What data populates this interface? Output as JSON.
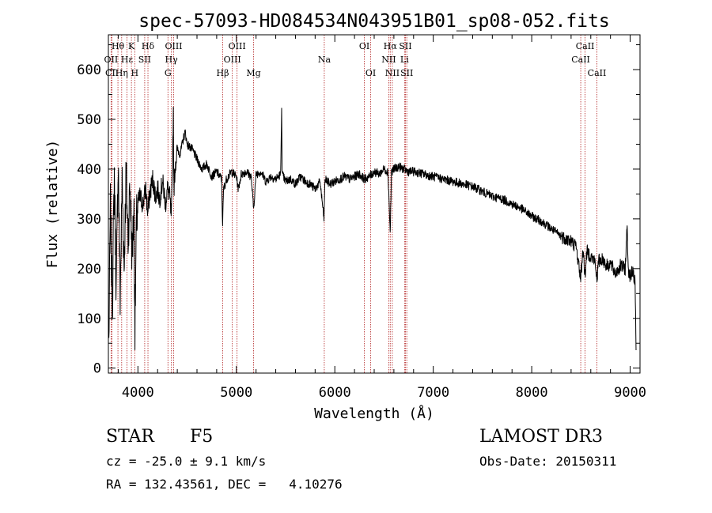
{
  "chart_data": {
    "type": "line",
    "title": "spec-57093-HD084534N043951B01_sp08-052.fits",
    "xlabel": "Wavelength (Å)",
    "ylabel": "Flux (relative)",
    "xlim": [
      3700,
      9100
    ],
    "ylim": [
      -10,
      670
    ],
    "xticks": [
      4000,
      5000,
      6000,
      7000,
      8000,
      9000
    ],
    "yticks": [
      0,
      100,
      200,
      300,
      400,
      500,
      600
    ],
    "grid": false,
    "line_color": "#000000",
    "marker_color": "#b22222",
    "anchors": [
      [
        3705,
        50
      ],
      [
        3720,
        330
      ],
      [
        3740,
        120
      ],
      [
        3760,
        390
      ],
      [
        3780,
        160
      ],
      [
        3800,
        420
      ],
      [
        3820,
        140
      ],
      [
        3840,
        380
      ],
      [
        3860,
        200
      ],
      [
        3880,
        400
      ],
      [
        3900,
        260
      ],
      [
        3920,
        370
      ],
      [
        3940,
        230
      ],
      [
        3960,
        310
      ],
      [
        3970,
        80
      ],
      [
        3985,
        290
      ],
      [
        4000,
        330
      ],
      [
        4020,
        345
      ],
      [
        4050,
        330
      ],
      [
        4080,
        360
      ],
      [
        4100,
        310
      ],
      [
        4120,
        350
      ],
      [
        4150,
        380
      ],
      [
        4180,
        345
      ],
      [
        4200,
        360
      ],
      [
        4220,
        340
      ],
      [
        4250,
        375
      ],
      [
        4280,
        330
      ],
      [
        4300,
        360
      ],
      [
        4320,
        350
      ],
      [
        4340,
        300
      ],
      [
        4350,
        390
      ],
      [
        4360,
        520
      ],
      [
        4365,
        360
      ],
      [
        4380,
        410
      ],
      [
        4400,
        440
      ],
      [
        4430,
        430
      ],
      [
        4460,
        460
      ],
      [
        4480,
        475
      ],
      [
        4500,
        450
      ],
      [
        4550,
        440
      ],
      [
        4600,
        420
      ],
      [
        4650,
        400
      ],
      [
        4700,
        410
      ],
      [
        4750,
        385
      ],
      [
        4800,
        395
      ],
      [
        4850,
        380
      ],
      [
        4860,
        290
      ],
      [
        4870,
        360
      ],
      [
        4900,
        380
      ],
      [
        4950,
        395
      ],
      [
        5000,
        385
      ],
      [
        5020,
        360
      ],
      [
        5050,
        390
      ],
      [
        5100,
        395
      ],
      [
        5150,
        385
      ],
      [
        5175,
        320
      ],
      [
        5200,
        390
      ],
      [
        5250,
        395
      ],
      [
        5300,
        375
      ],
      [
        5350,
        385
      ],
      [
        5400,
        380
      ],
      [
        5450,
        390
      ],
      [
        5460,
        530
      ],
      [
        5465,
        390
      ],
      [
        5500,
        375
      ],
      [
        5550,
        380
      ],
      [
        5600,
        370
      ],
      [
        5650,
        385
      ],
      [
        5700,
        375
      ],
      [
        5750,
        370
      ],
      [
        5800,
        360
      ],
      [
        5850,
        375
      ],
      [
        5890,
        300
      ],
      [
        5900,
        380
      ],
      [
        5950,
        370
      ],
      [
        6000,
        375
      ],
      [
        6050,
        380
      ],
      [
        6100,
        385
      ],
      [
        6150,
        380
      ],
      [
        6200,
        385
      ],
      [
        6250,
        390
      ],
      [
        6300,
        380
      ],
      [
        6350,
        385
      ],
      [
        6400,
        395
      ],
      [
        6450,
        390
      ],
      [
        6500,
        400
      ],
      [
        6540,
        395
      ],
      [
        6563,
        270
      ],
      [
        6575,
        395
      ],
      [
        6600,
        400
      ],
      [
        6650,
        405
      ],
      [
        6700,
        400
      ],
      [
        6750,
        395
      ],
      [
        6800,
        395
      ],
      [
        6900,
        390
      ],
      [
        7000,
        385
      ],
      [
        7100,
        380
      ],
      [
        7200,
        375
      ],
      [
        7300,
        370
      ],
      [
        7400,
        365
      ],
      [
        7500,
        355
      ],
      [
        7600,
        345
      ],
      [
        7700,
        340
      ],
      [
        7800,
        330
      ],
      [
        7900,
        320
      ],
      [
        8000,
        305
      ],
      [
        8100,
        295
      ],
      [
        8200,
        280
      ],
      [
        8300,
        265
      ],
      [
        8400,
        255
      ],
      [
        8450,
        245
      ],
      [
        8498,
        180
      ],
      [
        8520,
        240
      ],
      [
        8542,
        185
      ],
      [
        8560,
        235
      ],
      [
        8600,
        225
      ],
      [
        8640,
        215
      ],
      [
        8662,
        180
      ],
      [
        8680,
        215
      ],
      [
        8720,
        220
      ],
      [
        8760,
        205
      ],
      [
        8800,
        210
      ],
      [
        8850,
        190
      ],
      [
        8900,
        205
      ],
      [
        8950,
        200
      ],
      [
        8970,
        290
      ],
      [
        8980,
        200
      ],
      [
        9000,
        185
      ],
      [
        9030,
        195
      ],
      [
        9050,
        170
      ],
      [
        9060,
        35
      ]
    ],
    "line_markers": [
      {
        "name": "Hθ",
        "wavelength": 3797,
        "label_row": 0
      },
      {
        "name": "OII",
        "wavelength": 3727,
        "label_row": 1
      },
      {
        "name": "CII",
        "wavelength": 3737,
        "label_row": 2
      },
      {
        "name": "K",
        "wavelength": 3934,
        "label_row": 0
      },
      {
        "name": "Hε",
        "wavelength": 3889,
        "label_row": 1
      },
      {
        "name": "Hη",
        "wavelength": 3835,
        "label_row": 2
      },
      {
        "name": "H",
        "wavelength": 3968,
        "label_row": 2
      },
      {
        "name": "SII",
        "wavelength": 4069,
        "label_row": 1
      },
      {
        "name": "Hδ",
        "wavelength": 4102,
        "label_row": 0
      },
      {
        "name": "OIII",
        "wavelength": 4363,
        "label_row": 0
      },
      {
        "name": "Hγ",
        "wavelength": 4340,
        "label_row": 1
      },
      {
        "name": "G",
        "wavelength": 4305,
        "label_row": 2
      },
      {
        "name": "Hβ",
        "wavelength": 4861,
        "label_row": 2
      },
      {
        "name": "OIII",
        "wavelength": 5007,
        "label_row": 0
      },
      {
        "name": "OIII",
        "wavelength": 4959,
        "label_row": 1
      },
      {
        "name": "Mg",
        "wavelength": 5175,
        "label_row": 2
      },
      {
        "name": "Na",
        "wavelength": 5893,
        "label_row": 1
      },
      {
        "name": "OI",
        "wavelength": 6300,
        "label_row": 0
      },
      {
        "name": "OI",
        "wavelength": 6364,
        "label_row": 2
      },
      {
        "name": "Hα",
        "wavelength": 6563,
        "label_row": 0
      },
      {
        "name": "SII",
        "wavelength": 6717,
        "label_row": 0
      },
      {
        "name": "NII",
        "wavelength": 6548,
        "label_row": 1
      },
      {
        "name": "Li",
        "wavelength": 6708,
        "label_row": 1
      },
      {
        "name": "NII",
        "wavelength": 6584,
        "label_row": 2
      },
      {
        "name": "SII",
        "wavelength": 6731,
        "label_row": 2
      },
      {
        "name": "CaII",
        "wavelength": 8542,
        "label_row": 0
      },
      {
        "name": "CaII",
        "wavelength": 8498,
        "label_row": 1
      },
      {
        "name": "CaII",
        "wavelength": 8662,
        "label_row": 2
      }
    ]
  },
  "info": {
    "object_class": "STAR",
    "subclass": "F5",
    "survey": "LAMOST DR3",
    "redshift": "cz = -25.0 ± 9.1 km/s",
    "obs_date": "Obs-Date: 20150311",
    "coords": "RA = 132.43561, DEC =   4.10276"
  }
}
